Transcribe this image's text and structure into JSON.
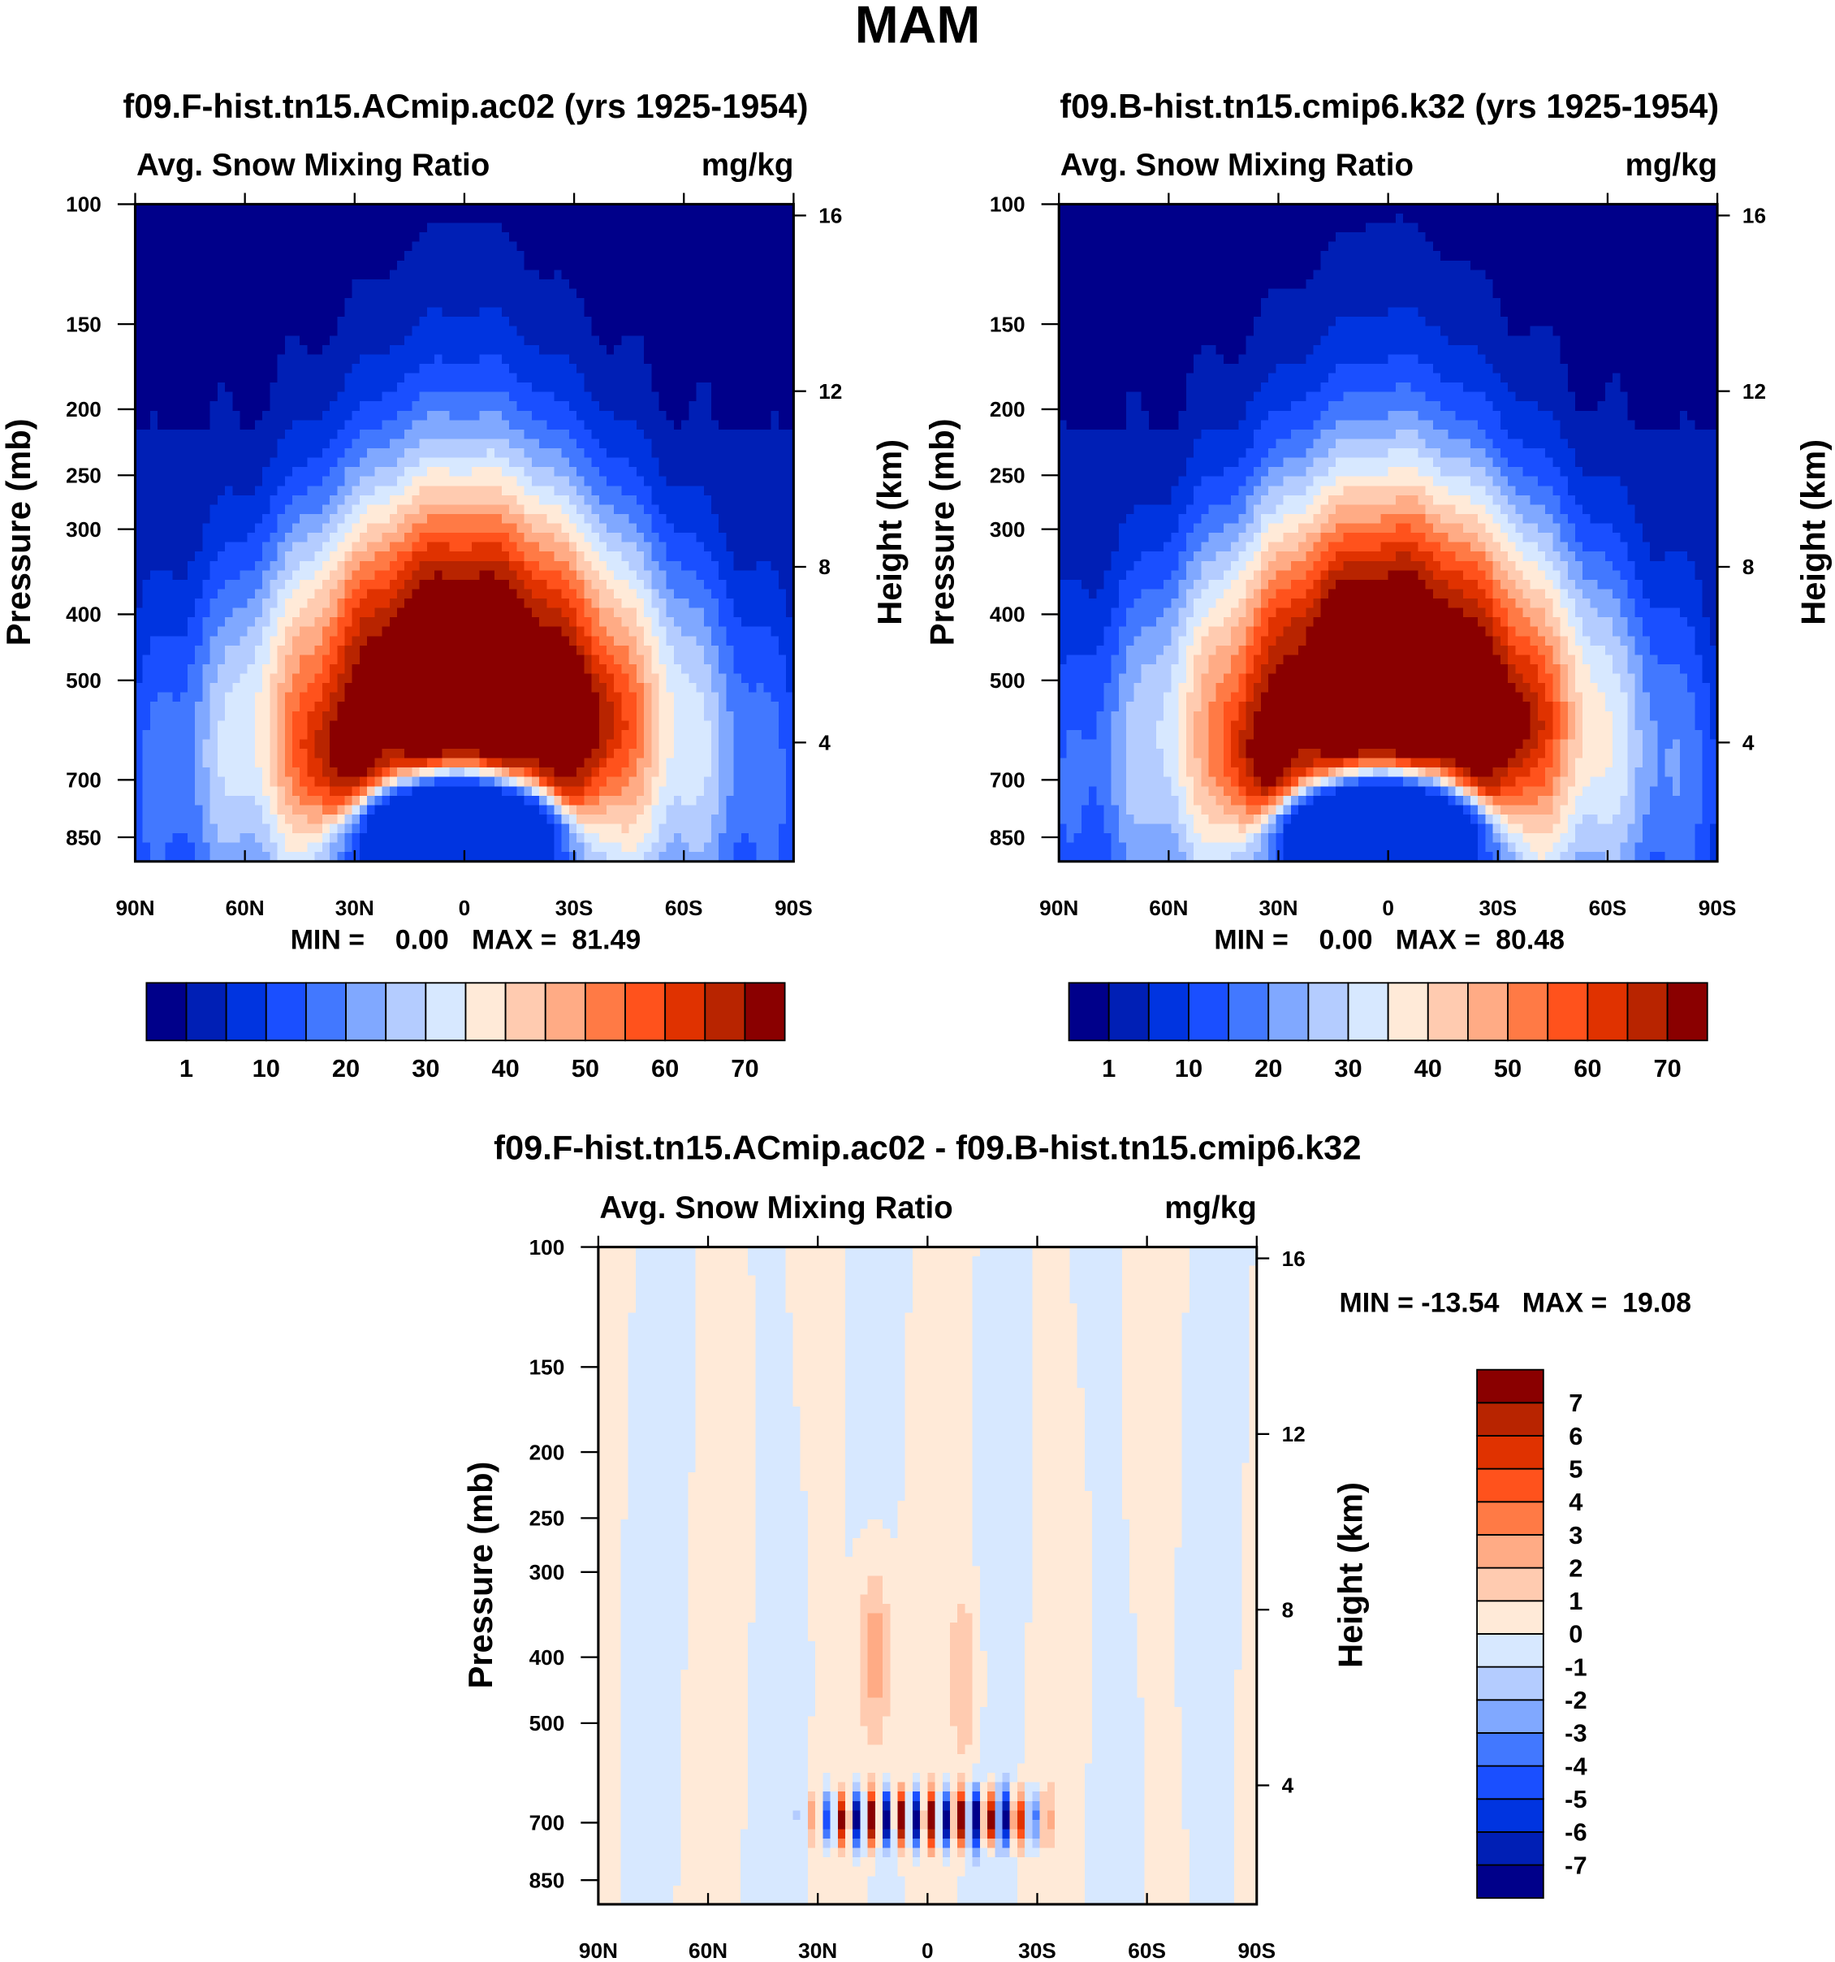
{
  "title": "MAM",
  "chart_data": [
    {
      "type": "heatmap",
      "title": "f09.F-hist.tn15.ACmip.ac02 (yrs 1925-1954)",
      "subtitle_left": "Avg. Snow Mixing Ratio",
      "subtitle_right": "mg/kg",
      "ylabel": "Pressure (mb)",
      "ylabel_right": "Height (km)",
      "x_ticks": [
        "90N",
        "60N",
        "30N",
        "0",
        "30S",
        "60S",
        "90S"
      ],
      "y_ticks": [
        "100",
        "150",
        "200",
        "250",
        "300",
        "400",
        "500",
        "700",
        "850"
      ],
      "y_ticks_right": [
        "16",
        "12",
        "8",
        "4"
      ],
      "ylim_mb": [
        100,
        920
      ],
      "min": 0.0,
      "max": 81.49,
      "stats_text": "MIN =    0.00   MAX =  81.49",
      "levels": [
        1,
        5,
        10,
        15,
        20,
        25,
        30,
        35,
        40,
        45,
        50,
        55,
        60,
        65,
        70
      ],
      "colorbar_labels": [
        "1",
        "10",
        "20",
        "30",
        "40",
        "50",
        "60",
        "70"
      ]
    },
    {
      "type": "heatmap",
      "title": "f09.B-hist.tn15.cmip6.k32 (yrs 1925-1954)",
      "subtitle_left": "Avg. Snow Mixing Ratio",
      "subtitle_right": "mg/kg",
      "ylabel": "Pressure (mb)",
      "ylabel_right": "Height (km)",
      "x_ticks": [
        "90N",
        "60N",
        "30N",
        "0",
        "30S",
        "60S",
        "90S"
      ],
      "y_ticks": [
        "100",
        "150",
        "200",
        "250",
        "300",
        "400",
        "500",
        "700",
        "850"
      ],
      "y_ticks_right": [
        "16",
        "12",
        "8",
        "4"
      ],
      "ylim_mb": [
        100,
        920
      ],
      "min": 0.0,
      "max": 80.48,
      "stats_text": "MIN =    0.00   MAX =  80.48",
      "levels": [
        1,
        5,
        10,
        15,
        20,
        25,
        30,
        35,
        40,
        45,
        50,
        55,
        60,
        65,
        70
      ],
      "colorbar_labels": [
        "1",
        "10",
        "20",
        "30",
        "40",
        "50",
        "60",
        "70"
      ]
    },
    {
      "type": "heatmap",
      "title": "f09.F-hist.tn15.ACmip.ac02 - f09.B-hist.tn15.cmip6.k32",
      "subtitle_left": "Avg. Snow Mixing Ratio",
      "subtitle_right": "mg/kg",
      "ylabel": "Pressure (mb)",
      "ylabel_right": "Height (km)",
      "x_ticks": [
        "90N",
        "60N",
        "30N",
        "0",
        "30S",
        "60S",
        "90S"
      ],
      "y_ticks": [
        "100",
        "150",
        "200",
        "250",
        "300",
        "400",
        "500",
        "700",
        "850"
      ],
      "y_ticks_right": [
        "16",
        "12",
        "8",
        "4"
      ],
      "ylim_mb": [
        100,
        920
      ],
      "min": -13.54,
      "max": 19.08,
      "stats_text": "MIN = -13.54   MAX =  19.08",
      "levels": [
        -7,
        -6,
        -5,
        -4,
        -3,
        -2,
        -1,
        0,
        1,
        2,
        3,
        4,
        5,
        6,
        7
      ],
      "colorbar_labels": [
        "-7",
        "-6",
        "-5",
        "-4",
        "-3",
        "-2",
        "-1",
        "0",
        "1",
        "2",
        "3",
        "4",
        "5",
        "6",
        "7"
      ]
    }
  ],
  "colors": [
    "#00008a",
    "#001fb5",
    "#0034e0",
    "#1a4fff",
    "#4278ff",
    "#80a8ff",
    "#b4ccff",
    "#d7e8ff",
    "#ffead8",
    "#ffcbb0",
    "#ffab85",
    "#ff7a45",
    "#ff521c",
    "#e03200",
    "#b82400",
    "#8a0000"
  ]
}
